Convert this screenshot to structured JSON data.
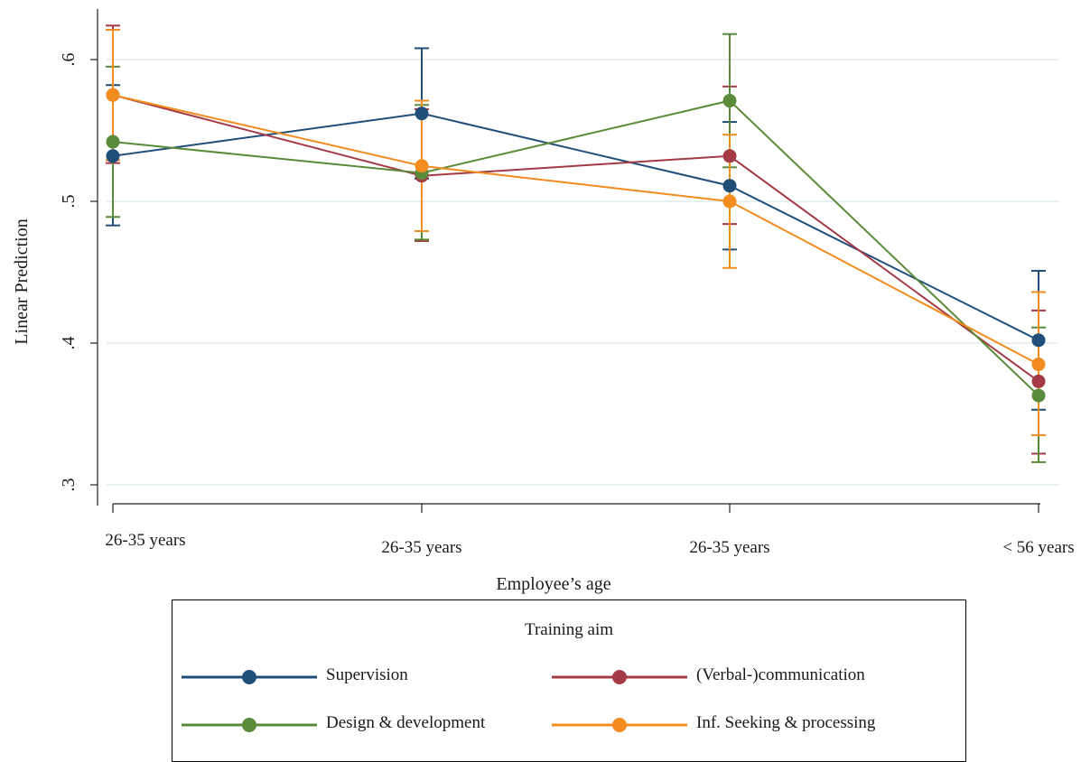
{
  "chart_data": {
    "type": "line",
    "xlabel": "Employee’s age",
    "ylabel": "Linear Prediction",
    "categories": [
      "26-35 years",
      "26-35 years",
      "26-35 years",
      "< 56 years"
    ],
    "yticks": [
      ".3",
      ".4",
      ".5",
      ".6"
    ],
    "ylim": [
      0.29,
      0.64
    ],
    "grid": true,
    "legend": {
      "title": "Training aim",
      "placement": "bottom"
    },
    "series": [
      {
        "name": "Supervision",
        "color": "#1f4e79",
        "values": [
          0.532,
          0.562,
          0.511,
          0.402
        ],
        "lower": [
          0.483,
          0.516,
          0.466,
          0.353
        ],
        "upper": [
          0.582,
          0.608,
          0.556,
          0.451
        ]
      },
      {
        "name": "(Verbal-)communication",
        "color": "#a33a45",
        "values": [
          0.575,
          0.518,
          0.532,
          0.373
        ],
        "lower": [
          0.527,
          0.472,
          0.484,
          0.322
        ],
        "upper": [
          0.624,
          0.565,
          0.581,
          0.423
        ]
      },
      {
        "name": "Design & development",
        "color": "#5a8b3a",
        "values": [
          0.542,
          0.52,
          0.571,
          0.363
        ],
        "lower": [
          0.489,
          0.473,
          0.524,
          0.316
        ],
        "upper": [
          0.595,
          0.568,
          0.618,
          0.411
        ]
      },
      {
        "name": "Inf. Seeking & processing",
        "color": "#f28c1e",
        "values": [
          0.575,
          0.525,
          0.5,
          0.385
        ],
        "lower": [
          0.529,
          0.479,
          0.453,
          0.335
        ],
        "upper": [
          0.621,
          0.571,
          0.547,
          0.436
        ]
      }
    ]
  }
}
